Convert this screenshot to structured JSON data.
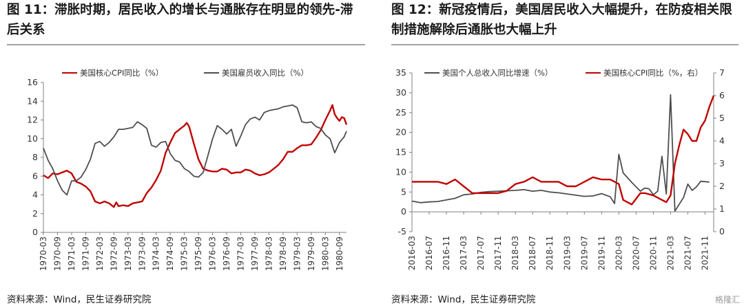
{
  "left_panel": {
    "title": "图 11：滞胀时期，居民收入的增长与通胀存在明显的领先-滞后关系",
    "source": "资料来源：Wind，民生证券研究院"
  },
  "right_panel": {
    "title": "图 12：新冠疫情后，美国居民收入大幅提升，在防疫相关限制措施解除后通胀也大幅上升",
    "source": "资料来源：Wind，民生证券研究院",
    "watermark": "格隆汇"
  },
  "colors": {
    "red": "#c00000",
    "gray": "#4d4d4d",
    "axis": "#7f7f7f"
  },
  "chart_data": [
    {
      "type": "line",
      "title": "",
      "ylim": [
        0,
        16
      ],
      "yticks": [
        0,
        2,
        4,
        6,
        8,
        10,
        12,
        14,
        16
      ],
      "x_start": "1970-03",
      "x_end": "1980-12",
      "xtick_labels": [
        "1970-03",
        "1970-09",
        "1971-03",
        "1971-09",
        "1972-03",
        "1972-09",
        "1973-03",
        "1973-09",
        "1974-03",
        "1974-09",
        "1975-03",
        "1975-09",
        "1976-03",
        "1976-09",
        "1977-03",
        "1977-09",
        "1978-03",
        "1978-09",
        "1979-03",
        "1979-09",
        "1980-03",
        "1980-09"
      ],
      "legend_position": "top",
      "series": [
        {
          "name": "美国核心CPI同比（%）",
          "color": "red",
          "points": [
            [
              "1970-03",
              6.1
            ],
            [
              "1970-05",
              5.8
            ],
            [
              "1970-07",
              6.3
            ],
            [
              "1970-09",
              6.2
            ],
            [
              "1970-11",
              6.4
            ],
            [
              "1971-01",
              6.6
            ],
            [
              "1971-03",
              6.3
            ],
            [
              "1971-05",
              5.4
            ],
            [
              "1971-07",
              5.2
            ],
            [
              "1971-09",
              4.9
            ],
            [
              "1971-11",
              4.4
            ],
            [
              "1972-01",
              3.3
            ],
            [
              "1972-03",
              3.1
            ],
            [
              "1972-05",
              3.3
            ],
            [
              "1972-07",
              3.1
            ],
            [
              "1972-09",
              2.7
            ],
            [
              "1972-10",
              3.2
            ],
            [
              "1972-11",
              2.8
            ],
            [
              "1973-01",
              2.9
            ],
            [
              "1973-03",
              2.8
            ],
            [
              "1973-05",
              3.1
            ],
            [
              "1973-07",
              3.2
            ],
            [
              "1973-09",
              3.3
            ],
            [
              "1973-11",
              4.2
            ],
            [
              "1974-01",
              4.8
            ],
            [
              "1974-03",
              5.6
            ],
            [
              "1974-05",
              6.6
            ],
            [
              "1974-07",
              8.5
            ],
            [
              "1974-09",
              9.6
            ],
            [
              "1974-11",
              10.6
            ],
            [
              "1975-01",
              11.0
            ],
            [
              "1975-03",
              11.4
            ],
            [
              "1975-04",
              11.7
            ],
            [
              "1975-05",
              11.3
            ],
            [
              "1975-07",
              9.5
            ],
            [
              "1975-09",
              7.8
            ],
            [
              "1975-11",
              6.8
            ],
            [
              "1976-01",
              6.6
            ],
            [
              "1976-03",
              6.5
            ],
            [
              "1976-05",
              6.5
            ],
            [
              "1976-07",
              6.8
            ],
            [
              "1976-09",
              6.7
            ],
            [
              "1976-11",
              6.3
            ],
            [
              "1977-01",
              6.4
            ],
            [
              "1977-03",
              6.4
            ],
            [
              "1977-05",
              6.7
            ],
            [
              "1977-07",
              6.6
            ],
            [
              "1977-09",
              6.3
            ],
            [
              "1977-11",
              6.1
            ],
            [
              "1978-01",
              6.2
            ],
            [
              "1978-03",
              6.4
            ],
            [
              "1978-05",
              6.8
            ],
            [
              "1978-07",
              7.2
            ],
            [
              "1978-09",
              7.8
            ],
            [
              "1978-11",
              8.6
            ],
            [
              "1979-01",
              8.6
            ],
            [
              "1979-03",
              9.0
            ],
            [
              "1979-05",
              9.3
            ],
            [
              "1979-07",
              9.3
            ],
            [
              "1979-09",
              9.4
            ],
            [
              "1979-11",
              10.1
            ],
            [
              "1980-01",
              10.9
            ],
            [
              "1980-03",
              12.0
            ],
            [
              "1980-05",
              13.0
            ],
            [
              "1980-06",
              13.6
            ],
            [
              "1980-07",
              12.6
            ],
            [
              "1980-08",
              12.2
            ],
            [
              "1980-09",
              11.9
            ],
            [
              "1980-10",
              12.3
            ],
            [
              "1980-11",
              12.2
            ],
            [
              "1980-12",
              11.5
            ]
          ]
        },
        {
          "name": "美国雇员收入同比（%）",
          "color": "gray",
          "points": [
            [
              "1970-03",
              9.0
            ],
            [
              "1970-05",
              7.7
            ],
            [
              "1970-07",
              6.8
            ],
            [
              "1970-09",
              5.5
            ],
            [
              "1970-11",
              4.5
            ],
            [
              "1971-01",
              4.0
            ],
            [
              "1971-03",
              5.5
            ],
            [
              "1971-05",
              5.5
            ],
            [
              "1971-07",
              5.9
            ],
            [
              "1971-09",
              6.7
            ],
            [
              "1971-11",
              7.8
            ],
            [
              "1972-01",
              9.5
            ],
            [
              "1972-03",
              9.7
            ],
            [
              "1972-05",
              9.2
            ],
            [
              "1972-07",
              9.6
            ],
            [
              "1972-09",
              10.2
            ],
            [
              "1972-11",
              11.0
            ],
            [
              "1973-01",
              11.0
            ],
            [
              "1973-03",
              11.1
            ],
            [
              "1973-05",
              11.2
            ],
            [
              "1973-07",
              11.8
            ],
            [
              "1973-09",
              11.5
            ],
            [
              "1973-11",
              11.1
            ],
            [
              "1974-01",
              9.3
            ],
            [
              "1974-03",
              9.1
            ],
            [
              "1974-05",
              9.6
            ],
            [
              "1974-07",
              9.7
            ],
            [
              "1974-09",
              8.4
            ],
            [
              "1974-11",
              7.7
            ],
            [
              "1975-01",
              7.5
            ],
            [
              "1975-03",
              6.8
            ],
            [
              "1975-05",
              6.5
            ],
            [
              "1975-07",
              6.0
            ],
            [
              "1975-09",
              5.9
            ],
            [
              "1975-11",
              6.4
            ],
            [
              "1976-01",
              8.2
            ],
            [
              "1976-03",
              10.0
            ],
            [
              "1976-05",
              11.4
            ],
            [
              "1976-07",
              11.0
            ],
            [
              "1976-09",
              10.5
            ],
            [
              "1976-11",
              11.0
            ],
            [
              "1977-01",
              9.2
            ],
            [
              "1977-03",
              10.3
            ],
            [
              "1977-05",
              11.5
            ],
            [
              "1977-07",
              12.1
            ],
            [
              "1977-09",
              12.3
            ],
            [
              "1977-11",
              12.0
            ],
            [
              "1978-01",
              12.8
            ],
            [
              "1978-03",
              13.0
            ],
            [
              "1978-05",
              13.1
            ],
            [
              "1978-07",
              13.2
            ],
            [
              "1978-09",
              13.4
            ],
            [
              "1978-11",
              13.5
            ],
            [
              "1979-01",
              13.6
            ],
            [
              "1979-03",
              13.3
            ],
            [
              "1979-05",
              11.8
            ],
            [
              "1979-07",
              11.7
            ],
            [
              "1979-09",
              11.8
            ],
            [
              "1979-11",
              11.3
            ],
            [
              "1980-01",
              11.1
            ],
            [
              "1980-03",
              10.4
            ],
            [
              "1980-05",
              10.0
            ],
            [
              "1980-07",
              8.5
            ],
            [
              "1980-09",
              9.6
            ],
            [
              "1980-11",
              10.2
            ],
            [
              "1980-12",
              10.8
            ]
          ]
        }
      ]
    },
    {
      "type": "line",
      "title": "",
      "ylim": [
        -5,
        35
      ],
      "yticks": [
        -5,
        0,
        5,
        10,
        15,
        20,
        25,
        30,
        35
      ],
      "y2lim": [
        0,
        7
      ],
      "y2ticks": [
        0,
        1,
        2,
        3,
        4,
        5,
        6,
        7
      ],
      "x_start": "2016-03",
      "x_end": "2022-01",
      "xtick_labels": [
        "2016-03",
        "2016-07",
        "2016-11",
        "2017-03",
        "2017-07",
        "2017-11",
        "2018-03",
        "2018-07",
        "2018-11",
        "2019-03",
        "2019-07",
        "2019-11",
        "2020-03",
        "2020-07",
        "2020-11",
        "2021-03",
        "2021-07",
        "2021-11"
      ],
      "legend_position": "top",
      "series": [
        {
          "name": "美国个人总收入同比增速（%）",
          "color": "gray",
          "axis": "left",
          "points": [
            [
              "2016-03",
              2.7
            ],
            [
              "2016-05",
              2.3
            ],
            [
              "2016-07",
              2.5
            ],
            [
              "2016-09",
              2.6
            ],
            [
              "2016-11",
              3.0
            ],
            [
              "2017-01",
              3.4
            ],
            [
              "2017-03",
              4.3
            ],
            [
              "2017-05",
              4.5
            ],
            [
              "2017-07",
              4.9
            ],
            [
              "2017-09",
              5.1
            ],
            [
              "2017-11",
              5.2
            ],
            [
              "2018-01",
              5.3
            ],
            [
              "2018-03",
              5.4
            ],
            [
              "2018-05",
              5.6
            ],
            [
              "2018-07",
              5.2
            ],
            [
              "2018-09",
              5.4
            ],
            [
              "2018-11",
              5.0
            ],
            [
              "2019-01",
              4.8
            ],
            [
              "2019-03",
              4.5
            ],
            [
              "2019-05",
              4.2
            ],
            [
              "2019-07",
              3.9
            ],
            [
              "2019-09",
              4.0
            ],
            [
              "2019-11",
              4.6
            ],
            [
              "2020-01",
              3.8
            ],
            [
              "2020-02",
              2.1
            ],
            [
              "2020-03",
              14.5
            ],
            [
              "2020-04",
              9.8
            ],
            [
              "2020-06",
              7.4
            ],
            [
              "2020-08",
              5.2
            ],
            [
              "2020-09",
              6.0
            ],
            [
              "2020-10",
              5.8
            ],
            [
              "2020-11",
              4.3
            ],
            [
              "2020-12",
              5.2
            ],
            [
              "2021-01",
              14.0
            ],
            [
              "2021-02",
              4.5
            ],
            [
              "2021-03",
              29.5
            ],
            [
              "2021-04",
              0.2
            ],
            [
              "2021-06",
              3.6
            ],
            [
              "2021-07",
              7.0
            ],
            [
              "2021-08",
              5.4
            ],
            [
              "2021-09",
              6.3
            ],
            [
              "2021-10",
              7.7
            ],
            [
              "2021-12",
              7.5
            ]
          ]
        },
        {
          "name": "美国核心CPI同比（%，右）",
          "color": "red",
          "axis": "right",
          "points": [
            [
              "2016-03",
              2.2
            ],
            [
              "2016-05",
              2.2
            ],
            [
              "2016-07",
              2.2
            ],
            [
              "2016-09",
              2.2
            ],
            [
              "2016-11",
              2.1
            ],
            [
              "2017-01",
              2.3
            ],
            [
              "2017-03",
              2.0
            ],
            [
              "2017-05",
              1.7
            ],
            [
              "2017-07",
              1.7
            ],
            [
              "2017-09",
              1.7
            ],
            [
              "2017-11",
              1.7
            ],
            [
              "2018-01",
              1.8
            ],
            [
              "2018-03",
              2.1
            ],
            [
              "2018-05",
              2.2
            ],
            [
              "2018-07",
              2.4
            ],
            [
              "2018-09",
              2.2
            ],
            [
              "2018-11",
              2.2
            ],
            [
              "2019-01",
              2.2
            ],
            [
              "2019-03",
              2.0
            ],
            [
              "2019-05",
              2.0
            ],
            [
              "2019-07",
              2.2
            ],
            [
              "2019-09",
              2.4
            ],
            [
              "2019-11",
              2.3
            ],
            [
              "2020-01",
              2.3
            ],
            [
              "2020-03",
              2.1
            ],
            [
              "2020-04",
              1.4
            ],
            [
              "2020-06",
              1.2
            ],
            [
              "2020-08",
              1.7
            ],
            [
              "2020-09",
              1.7
            ],
            [
              "2020-11",
              1.6
            ],
            [
              "2021-01",
              1.4
            ],
            [
              "2021-02",
              1.3
            ],
            [
              "2021-03",
              1.6
            ],
            [
              "2021-04",
              3.0
            ],
            [
              "2021-05",
              3.8
            ],
            [
              "2021-06",
              4.5
            ],
            [
              "2021-07",
              4.3
            ],
            [
              "2021-08",
              4.0
            ],
            [
              "2021-09",
              4.0
            ],
            [
              "2021-10",
              4.6
            ],
            [
              "2021-11",
              4.9
            ],
            [
              "2021-12",
              5.5
            ],
            [
              "2022-01",
              6.0
            ]
          ]
        }
      ]
    }
  ]
}
